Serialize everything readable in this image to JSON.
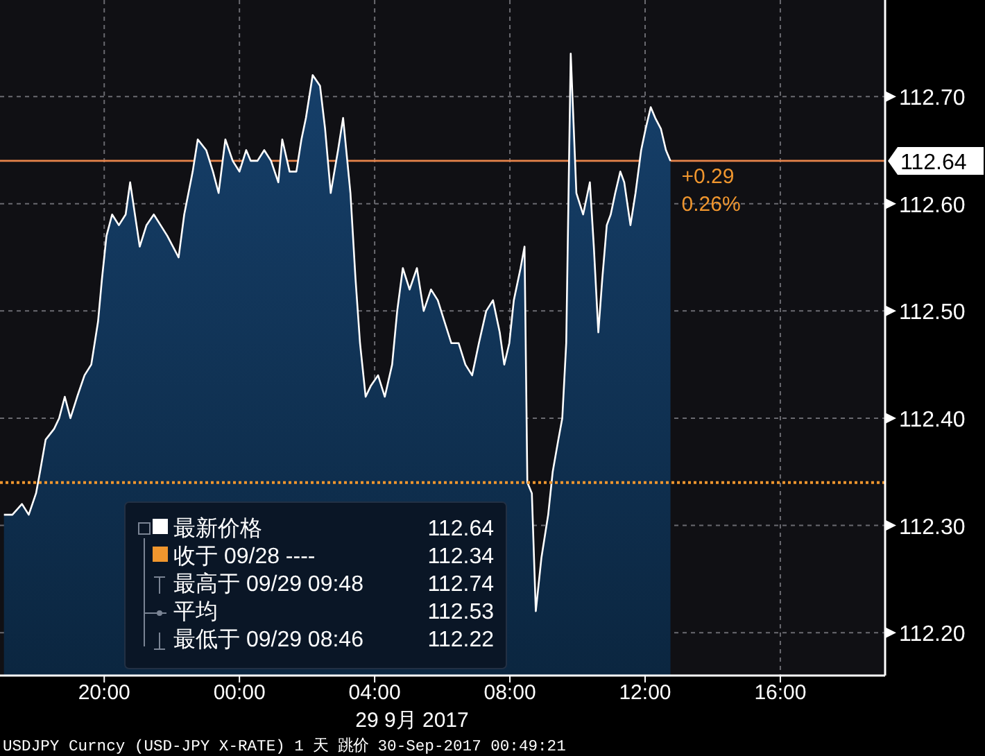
{
  "chart_data": {
    "type": "area",
    "xlabel": "29 9月 2017",
    "x": [
      "2017-09-28T17:02",
      "2017-09-28T17:17",
      "2017-09-28T17:34",
      "2017-09-28T17:46",
      "2017-09-28T17:59",
      "2017-09-28T18:06",
      "2017-09-28T18:16",
      "2017-09-28T18:31",
      "2017-09-28T18:40",
      "2017-09-28T18:50",
      "2017-09-28T19:00",
      "2017-09-28T19:12",
      "2017-09-28T19:25",
      "2017-09-28T19:37",
      "2017-09-28T19:49",
      "2017-09-28T19:56",
      "2017-09-28T20:04",
      "2017-09-28T20:14",
      "2017-09-28T20:26",
      "2017-09-28T20:38",
      "2017-09-28T20:46",
      "2017-09-28T21:03",
      "2017-09-28T21:15",
      "2017-09-28T21:28",
      "2017-09-28T21:40",
      "2017-09-28T21:52",
      "2017-09-28T22:12",
      "2017-09-28T22:22",
      "2017-09-28T22:37",
      "2017-09-28T22:46",
      "2017-09-28T23:01",
      "2017-09-28T23:13",
      "2017-09-28T23:23",
      "2017-09-28T23:35",
      "2017-09-28T23:48",
      "2017-09-29T00:00",
      "2017-09-29T00:12",
      "2017-09-29T00:20",
      "2017-09-29T00:32",
      "2017-09-29T00:44",
      "2017-09-29T00:56",
      "2017-09-29T01:09",
      "2017-09-29T01:16",
      "2017-09-29T01:29",
      "2017-09-29T01:41",
      "2017-09-29T01:50",
      "2017-09-29T01:58",
      "2017-09-29T02:10",
      "2017-09-29T02:23",
      "2017-09-29T02:32",
      "2017-09-29T02:42",
      "2017-09-29T02:55",
      "2017-09-29T03:04",
      "2017-09-29T03:17",
      "2017-09-29T03:26",
      "2017-09-29T03:34",
      "2017-09-29T03:44",
      "2017-09-29T03:53",
      "2017-09-29T04:06",
      "2017-09-29T04:18",
      "2017-09-29T04:31",
      "2017-09-29T04:40",
      "2017-09-29T04:50",
      "2017-09-29T05:02",
      "2017-09-29T05:15",
      "2017-09-29T05:27",
      "2017-09-29T05:40",
      "2017-09-29T05:52",
      "2017-09-29T06:04",
      "2017-09-29T06:16",
      "2017-09-29T06:29",
      "2017-09-29T06:41",
      "2017-09-29T06:53",
      "2017-09-29T07:05",
      "2017-09-29T07:18",
      "2017-09-29T07:30",
      "2017-09-29T07:42",
      "2017-09-29T07:50",
      "2017-09-29T07:59",
      "2017-09-29T08:07",
      "2017-09-29T08:19",
      "2017-09-29T08:26",
      "2017-09-29T08:31",
      "2017-09-29T08:39",
      "2017-09-29T08:46",
      "2017-09-29T08:56",
      "2017-09-29T09:08",
      "2017-09-29T09:16",
      "2017-09-29T09:26",
      "2017-09-29T09:33",
      "2017-09-29T09:40",
      "2017-09-29T09:48",
      "2017-09-29T09:58",
      "2017-09-29T10:10",
      "2017-09-29T10:22",
      "2017-09-29T10:29",
      "2017-09-29T10:37",
      "2017-09-29T10:44",
      "2017-09-29T10:52",
      "2017-09-29T10:59",
      "2017-09-29T11:07",
      "2017-09-29T11:16",
      "2017-09-29T11:23",
      "2017-09-29T11:34",
      "2017-09-29T11:43",
      "2017-09-29T11:53",
      "2017-09-29T12:01",
      "2017-09-29T12:10",
      "2017-09-29T12:18",
      "2017-09-29T12:28",
      "2017-09-29T12:37",
      "2017-09-29T12:45"
    ],
    "series": [
      {
        "name": "最新价格",
        "color": "#ffffff",
        "values": [
          112.31,
          112.31,
          112.32,
          112.31,
          112.33,
          112.35,
          112.38,
          112.39,
          112.4,
          112.42,
          112.4,
          112.42,
          112.44,
          112.45,
          112.49,
          112.53,
          112.57,
          112.59,
          112.58,
          112.59,
          112.62,
          112.56,
          112.58,
          112.59,
          112.58,
          112.57,
          112.55,
          112.59,
          112.63,
          112.66,
          112.65,
          112.63,
          112.61,
          112.66,
          112.64,
          112.63,
          112.65,
          112.64,
          112.64,
          112.65,
          112.64,
          112.62,
          112.66,
          112.63,
          112.63,
          112.66,
          112.68,
          112.72,
          112.71,
          112.67,
          112.61,
          112.65,
          112.68,
          112.61,
          112.53,
          112.47,
          112.42,
          112.43,
          112.44,
          112.42,
          112.45,
          112.5,
          112.54,
          112.52,
          112.54,
          112.5,
          112.52,
          112.51,
          112.49,
          112.47,
          112.47,
          112.45,
          112.44,
          112.47,
          112.5,
          112.51,
          112.48,
          112.45,
          112.47,
          112.51,
          112.54,
          112.56,
          112.34,
          112.33,
          112.22,
          112.27,
          112.31,
          112.35,
          112.38,
          112.4,
          112.47,
          112.74,
          112.61,
          112.59,
          112.62,
          112.56,
          112.48,
          112.53,
          112.58,
          112.59,
          112.61,
          112.63,
          112.62,
          112.58,
          112.61,
          112.65,
          112.67,
          112.69,
          112.68,
          112.67,
          112.65,
          112.64
        ]
      }
    ],
    "xlim": [
      "2017-09-28T16:55",
      "2017-09-29T19:06"
    ],
    "ylim": [
      112.16,
      112.79
    ],
    "xticks": [
      {
        "value": "2017-09-28T20:00",
        "label": "20:00"
      },
      {
        "value": "2017-09-29T00:00",
        "label": "00:00"
      },
      {
        "value": "2017-09-29T04:00",
        "label": "04:00"
      },
      {
        "value": "2017-09-29T08:00",
        "label": "08:00"
      },
      {
        "value": "2017-09-29T12:00",
        "label": "12:00"
      },
      {
        "value": "2017-09-29T16:00",
        "label": "16:00"
      }
    ],
    "yticks": [
      {
        "value": 112.2,
        "label": "112.20"
      },
      {
        "value": 112.3,
        "label": "112.30"
      },
      {
        "value": 112.4,
        "label": "112.40"
      },
      {
        "value": 112.5,
        "label": "112.50"
      },
      {
        "value": 112.6,
        "label": "112.60"
      },
      {
        "value": 112.7,
        "label": "112.70"
      }
    ],
    "ref_lines": [
      {
        "axis": "y",
        "value": 112.34,
        "label": "收于 09/28 ----",
        "color": "#f0962e",
        "line_style": "dotted"
      },
      {
        "axis": "y",
        "value": 112.64,
        "label": "112.64",
        "color": "#e8844a",
        "line_style": "solid"
      }
    ],
    "annotations": [
      "112.64",
      "112.34",
      "最高于 09/29 09:48",
      "112.74",
      "平均",
      "112.53",
      "最低于 09/29 08:46",
      "112.22",
      "+0.29",
      "0.26%",
      "USDJPY Curncy (USD-JPY X-RATE) 1 天  跳价 30-Sep-2017 00:49:21"
    ],
    "grid": true,
    "legend": "bottom left"
  }
}
